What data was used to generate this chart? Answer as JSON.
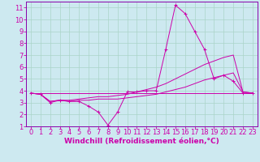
{
  "background_color": "#cde9f0",
  "grid_color": "#aad4c8",
  "line_color": "#cc00aa",
  "spine_color": "#8800aa",
  "xlim": [
    -0.5,
    23.5
  ],
  "ylim": [
    1,
    11.5
  ],
  "xlabel": "Windchill (Refroidissement éolien,°C)",
  "xlabel_fontsize": 6.5,
  "xticks": [
    0,
    1,
    2,
    3,
    4,
    5,
    6,
    7,
    8,
    9,
    10,
    11,
    12,
    13,
    14,
    15,
    16,
    17,
    18,
    19,
    20,
    21,
    22,
    23
  ],
  "yticks": [
    1,
    2,
    3,
    4,
    5,
    6,
    7,
    8,
    9,
    10,
    11
  ],
  "tick_fontsize": 6,
  "line1_x": [
    0,
    1,
    2,
    3,
    4,
    5,
    6,
    7,
    8,
    9,
    10,
    11,
    12,
    13,
    14,
    15,
    16,
    17,
    18,
    19,
    20,
    21,
    22,
    23
  ],
  "line1_y": [
    3.8,
    3.7,
    3.0,
    3.2,
    3.1,
    3.1,
    2.7,
    2.2,
    1.1,
    2.2,
    3.9,
    3.9,
    4.0,
    4.0,
    7.5,
    11.2,
    10.5,
    9.0,
    7.5,
    5.0,
    5.3,
    4.8,
    3.8,
    3.8
  ],
  "line2_x": [
    0,
    1,
    2,
    3,
    4,
    5,
    6,
    7,
    8,
    9,
    10,
    11,
    12,
    13,
    14,
    15,
    16,
    17,
    18,
    19,
    20,
    21,
    22,
    23
  ],
  "line2_y": [
    3.8,
    3.7,
    3.1,
    3.2,
    3.2,
    3.3,
    3.4,
    3.5,
    3.5,
    3.6,
    3.7,
    3.9,
    4.1,
    4.3,
    4.6,
    5.0,
    5.4,
    5.8,
    6.2,
    6.5,
    6.8,
    7.0,
    3.9,
    3.8
  ],
  "line3_x": [
    0,
    23
  ],
  "line3_y": [
    3.8,
    3.8
  ],
  "line4_x": [
    0,
    1,
    2,
    3,
    4,
    5,
    6,
    7,
    8,
    9,
    10,
    11,
    12,
    13,
    14,
    15,
    16,
    17,
    18,
    19,
    20,
    21,
    22,
    23
  ],
  "line4_y": [
    3.8,
    3.7,
    3.1,
    3.2,
    3.1,
    3.2,
    3.2,
    3.3,
    3.3,
    3.3,
    3.4,
    3.5,
    3.6,
    3.7,
    3.9,
    4.1,
    4.3,
    4.6,
    4.9,
    5.1,
    5.3,
    5.5,
    3.9,
    3.8
  ]
}
